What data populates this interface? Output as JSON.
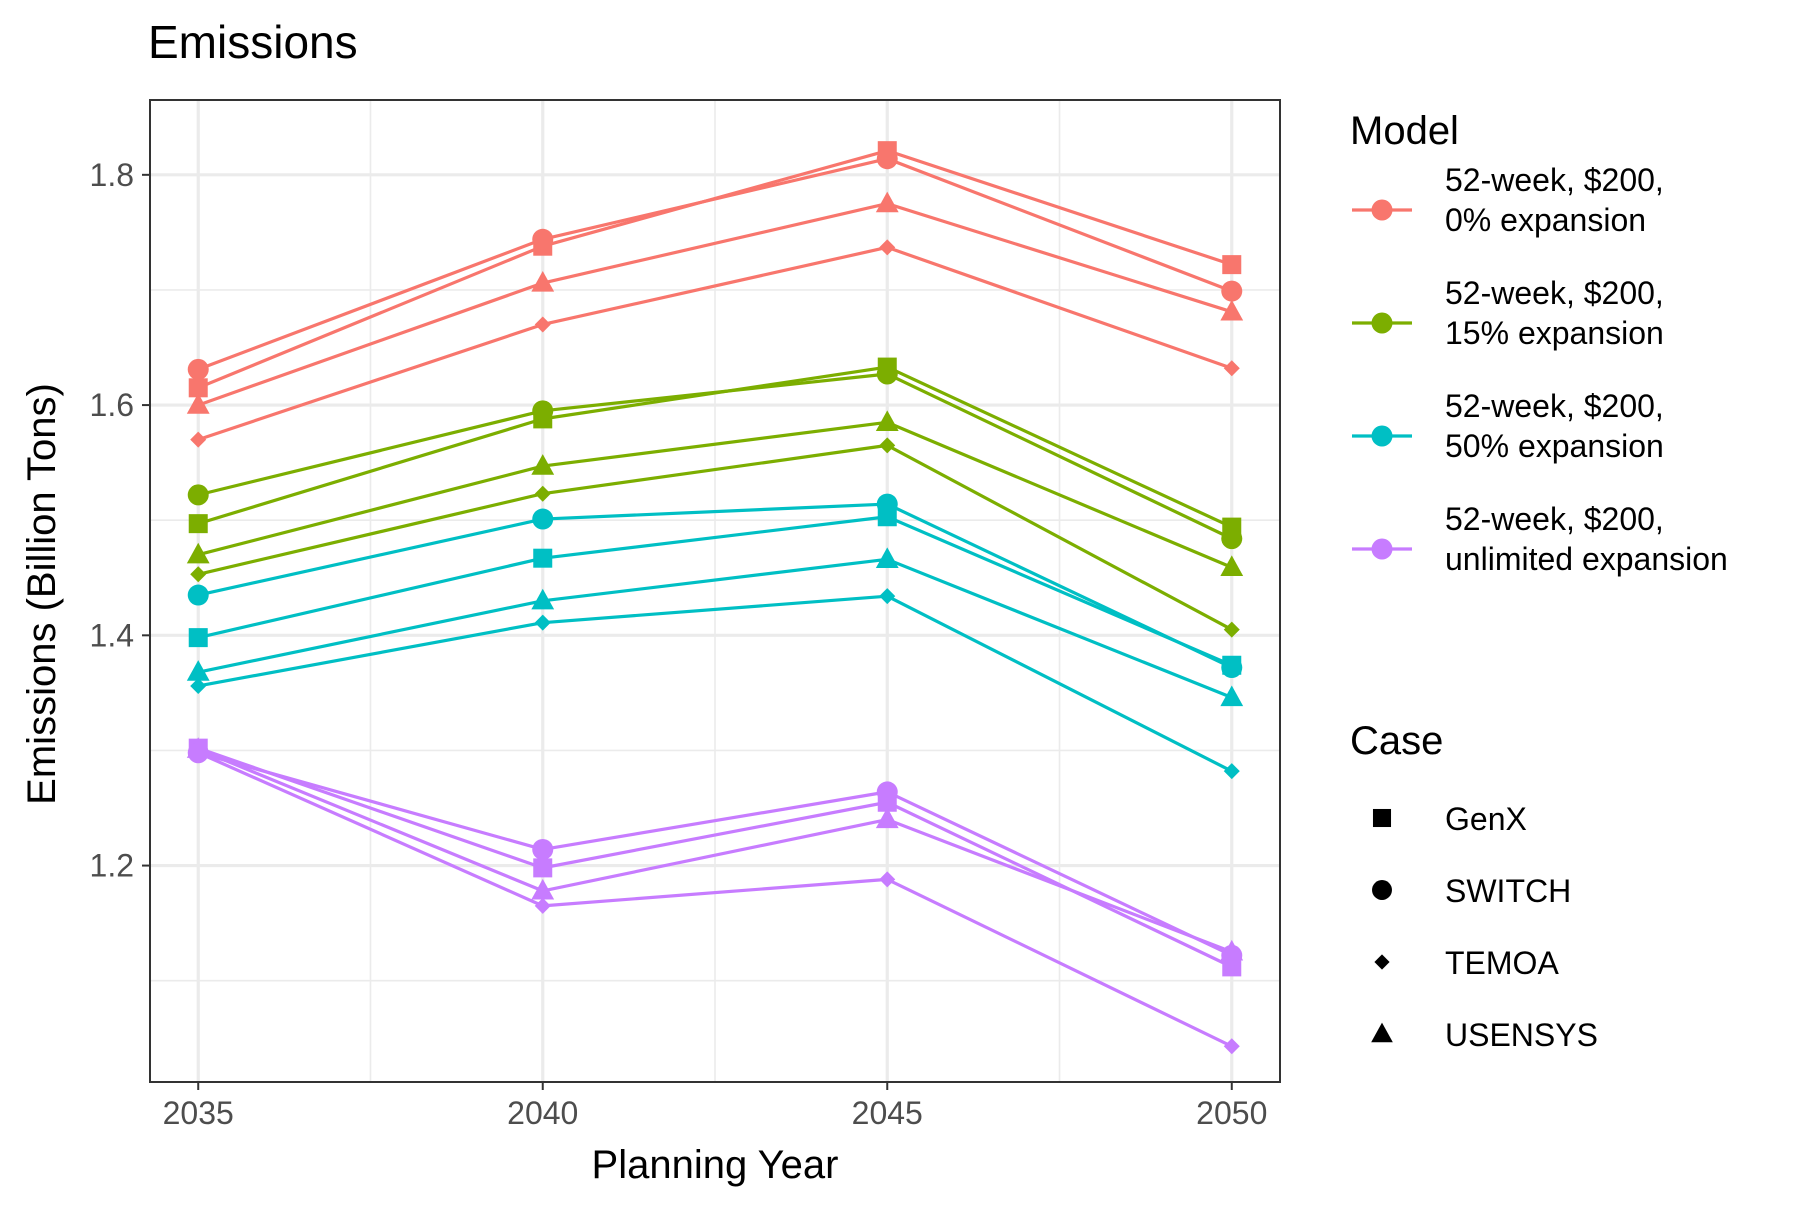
{
  "chart_data": {
    "type": "line",
    "title": "Emissions",
    "xlabel": "Planning Year",
    "ylabel": "Emissions (Billion Tons)",
    "x": [
      2035,
      2040,
      2045,
      2050
    ],
    "x_ticks": [
      "2035",
      "2040",
      "2045",
      "2050"
    ],
    "y_ticks": [
      1.2,
      1.4,
      1.6,
      1.8
    ],
    "y_tick_labels": [
      "1.2",
      "1.4",
      "1.6",
      "1.8"
    ],
    "xlim": [
      2034.3,
      2050.7
    ],
    "ylim": [
      1.012,
      1.865
    ],
    "grid": true,
    "legend_placement": "right",
    "legend": {
      "model_title": "Model",
      "case_title": "Case",
      "models": [
        {
          "key": "m0",
          "line1": "52-week, $200,",
          "line2": "0% expansion",
          "color": "#F8766D"
        },
        {
          "key": "m15",
          "line1": "52-week, $200,",
          "line2": "15% expansion",
          "color": "#7CAE00"
        },
        {
          "key": "m50",
          "line1": "52-week, $200,",
          "line2": "50% expansion",
          "color": "#00BFC4"
        },
        {
          "key": "munl",
          "line1": "52-week, $200,",
          "line2": "unlimited expansion",
          "color": "#C77CFF"
        }
      ],
      "cases": [
        {
          "name": "GenX",
          "shape": "square"
        },
        {
          "name": "SWITCH",
          "shape": "circle"
        },
        {
          "name": "TEMOA",
          "shape": "diamond"
        },
        {
          "name": "USENSYS",
          "shape": "triangle"
        }
      ]
    },
    "series": [
      {
        "model": "m0",
        "case": "GenX",
        "values": [
          1.615,
          1.738,
          1.821,
          1.722
        ]
      },
      {
        "model": "m0",
        "case": "SWITCH",
        "values": [
          1.631,
          1.744,
          1.814,
          1.699
        ]
      },
      {
        "model": "m0",
        "case": "TEMOA",
        "values": [
          1.57,
          1.67,
          1.737,
          1.632
        ]
      },
      {
        "model": "m0",
        "case": "USENSYS",
        "values": [
          1.6,
          1.706,
          1.775,
          1.681
        ]
      },
      {
        "model": "m15",
        "case": "GenX",
        "values": [
          1.497,
          1.588,
          1.633,
          1.494
        ]
      },
      {
        "model": "m15",
        "case": "SWITCH",
        "values": [
          1.522,
          1.595,
          1.627,
          1.484
        ]
      },
      {
        "model": "m15",
        "case": "TEMOA",
        "values": [
          1.453,
          1.523,
          1.565,
          1.405
        ]
      },
      {
        "model": "m15",
        "case": "USENSYS",
        "values": [
          1.47,
          1.547,
          1.585,
          1.459
        ]
      },
      {
        "model": "m50",
        "case": "GenX",
        "values": [
          1.398,
          1.467,
          1.503,
          1.374
        ]
      },
      {
        "model": "m50",
        "case": "SWITCH",
        "values": [
          1.435,
          1.501,
          1.514,
          1.372
        ]
      },
      {
        "model": "m50",
        "case": "TEMOA",
        "values": [
          1.356,
          1.411,
          1.434,
          1.282
        ]
      },
      {
        "model": "m50",
        "case": "USENSYS",
        "values": [
          1.368,
          1.43,
          1.466,
          1.346
        ]
      },
      {
        "model": "munl",
        "case": "GenX",
        "values": [
          1.302,
          1.198,
          1.255,
          1.112
        ]
      },
      {
        "model": "munl",
        "case": "SWITCH",
        "values": [
          1.298,
          1.214,
          1.264,
          1.122
        ]
      },
      {
        "model": "munl",
        "case": "TEMOA",
        "values": [
          1.298,
          1.165,
          1.188,
          1.043
        ]
      },
      {
        "model": "munl",
        "case": "USENSYS",
        "values": [
          1.301,
          1.178,
          1.24,
          1.125
        ]
      }
    ]
  }
}
